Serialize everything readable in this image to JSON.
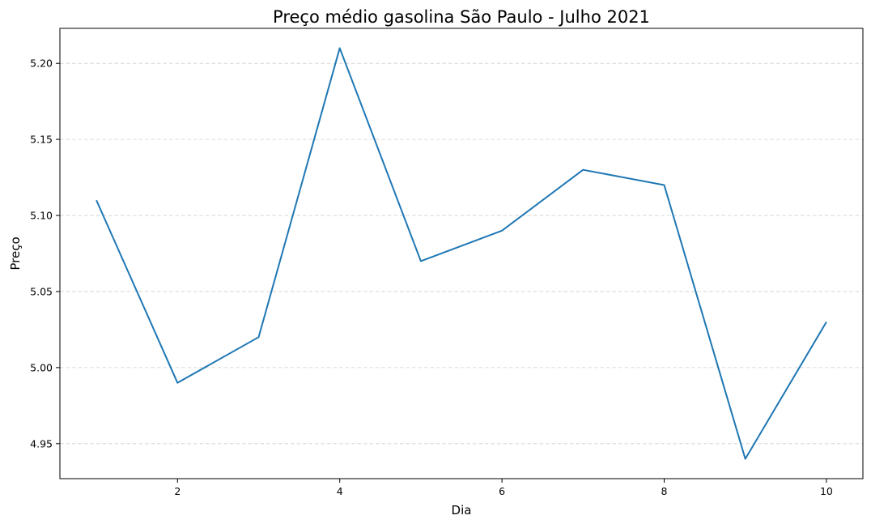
{
  "chart_data": {
    "type": "line",
    "title": "Preço médio gasolina São Paulo - Julho 2021",
    "xlabel": "Dia",
    "ylabel": "Preço",
    "x": [
      1,
      2,
      3,
      4,
      5,
      6,
      7,
      8,
      9,
      10
    ],
    "series": [
      {
        "values": [
          5.11,
          4.99,
          5.02,
          5.21,
          5.07,
          5.09,
          5.13,
          5.12,
          4.94,
          5.03
        ],
        "color": "#1f77b4"
      }
    ],
    "xlim": [
      0.55,
      10.45
    ],
    "ylim": [
      4.927,
      5.223
    ],
    "xticks": [
      2,
      4,
      6,
      8,
      10
    ],
    "xtick_labels": [
      "2",
      "4",
      "6",
      "8",
      "10"
    ],
    "yticks": [
      4.95,
      5.0,
      5.05,
      5.1,
      5.15,
      5.2
    ],
    "ytick_labels": [
      "4.95",
      "5.00",
      "5.05",
      "5.10",
      "5.15",
      "5.20"
    ],
    "grid": "y-dashed",
    "legend": "none"
  }
}
